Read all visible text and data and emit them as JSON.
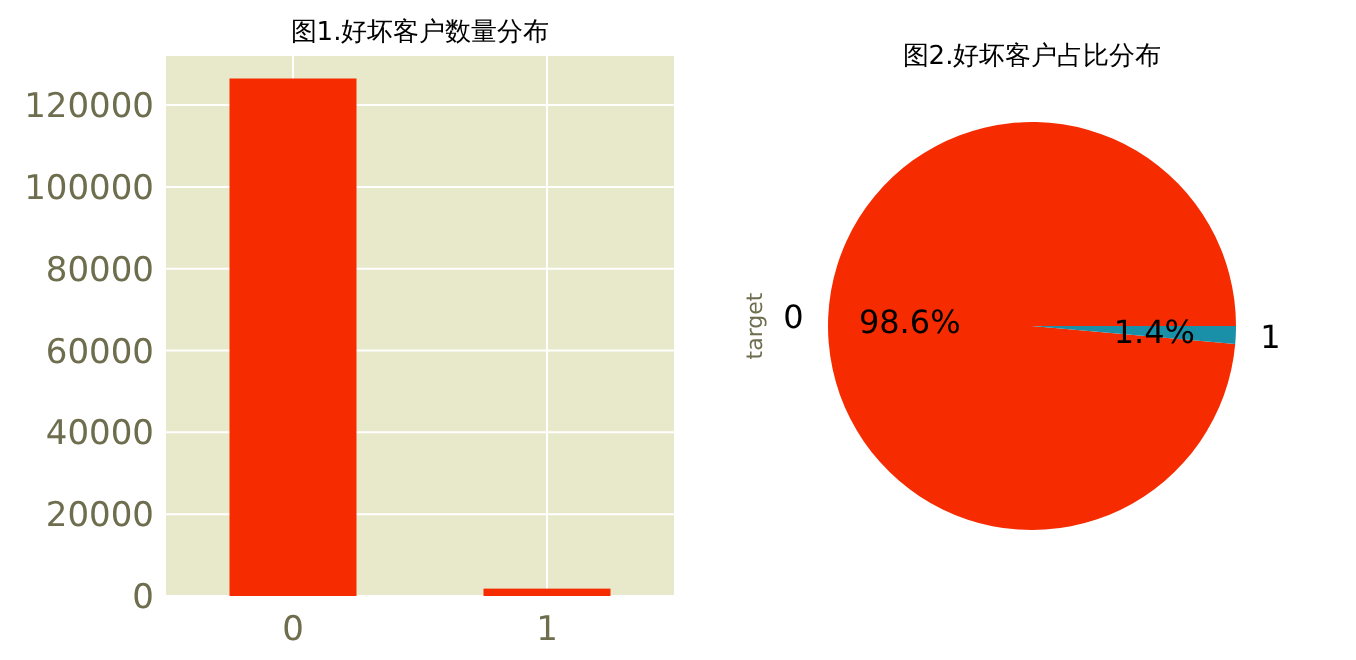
{
  "chart_data": [
    {
      "type": "bar",
      "title": "图1.好坏客户数量分布",
      "categories": [
        "0",
        "1"
      ],
      "values": [
        126500,
        1800
      ],
      "color": "#f62c00",
      "ylim": [
        0,
        132000
      ],
      "yticks": [
        0,
        20000,
        40000,
        60000,
        80000,
        100000,
        120000
      ],
      "grid": true
    },
    {
      "type": "pie",
      "title": "图2.好坏客户占比分布",
      "ylabel": "target",
      "categories": [
        "0",
        "1"
      ],
      "values": [
        98.6,
        1.4
      ],
      "colors": [
        "#f62c00",
        "#1a8fa8"
      ],
      "value_labels": [
        "98.6%",
        "1.4%"
      ]
    }
  ]
}
